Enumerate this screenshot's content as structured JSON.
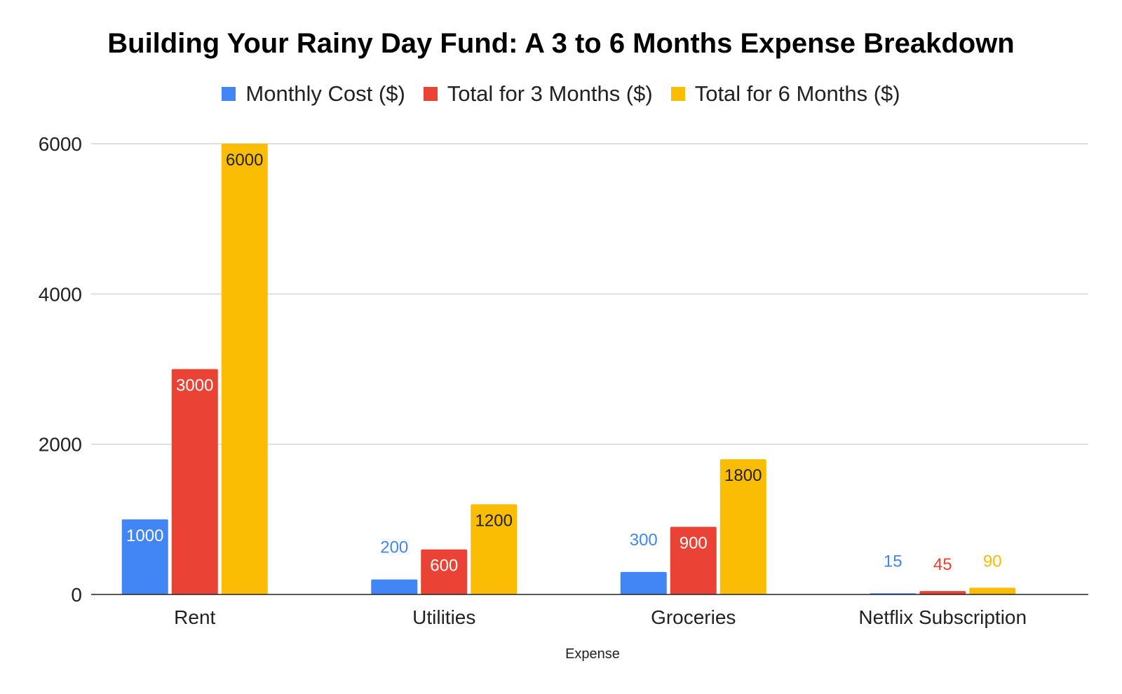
{
  "chart_data": {
    "type": "bar",
    "title": "Building Your Rainy Day Fund: A 3 to 6 Months Expense Breakdown",
    "xlabel": "Expense",
    "ylabel": "",
    "categories": [
      "Rent",
      "Utilities",
      "Groceries",
      "Netflix Subscription"
    ],
    "series": [
      {
        "name": "Monthly Cost ($)",
        "color": "#4285f4",
        "values": [
          1000,
          200,
          300,
          15
        ]
      },
      {
        "name": "Total for 3 Months ($)",
        "color": "#ea4335",
        "values": [
          3000,
          600,
          900,
          45
        ]
      },
      {
        "name": "Total for 6 Months ($)",
        "color": "#fbbc04",
        "values": [
          6000,
          1200,
          1800,
          90
        ]
      }
    ],
    "ylim": [
      0,
      6000
    ],
    "yticks": [
      0,
      2000,
      4000,
      6000
    ],
    "grid": true,
    "legend_position": "top"
  }
}
